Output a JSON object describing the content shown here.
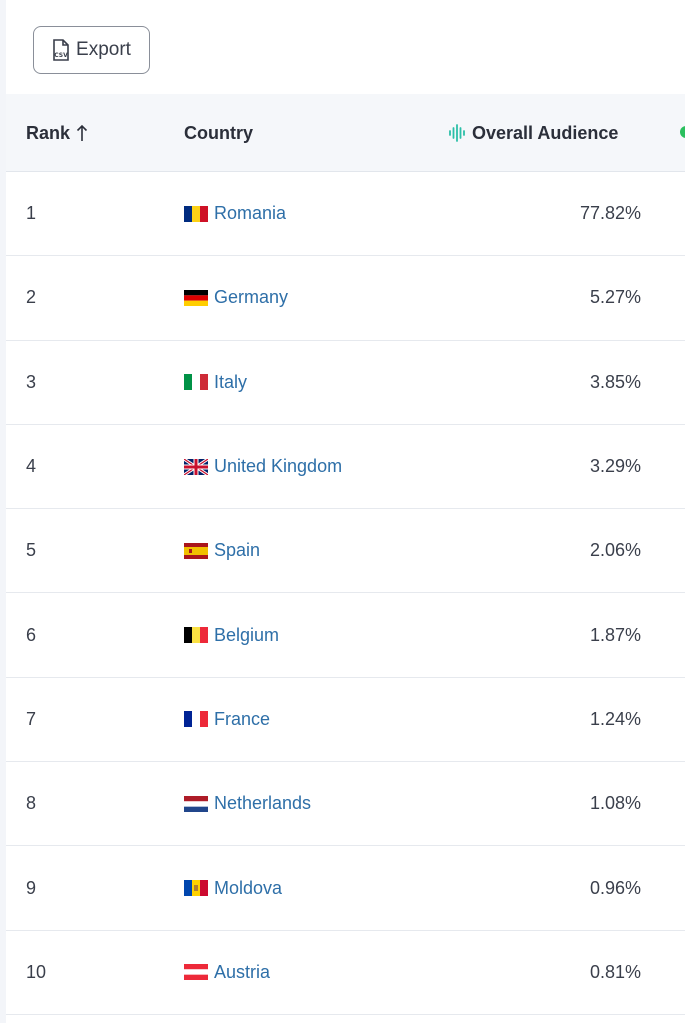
{
  "toolbar": {
    "export_label": "Export",
    "export_icon": "csv-file-icon"
  },
  "table": {
    "headers": {
      "rank": "Rank",
      "rank_sort_icon": "arrow-up-icon",
      "country": "Country",
      "audience": "Overall Audience",
      "audience_icon": "audio-wave-icon"
    },
    "rows": [
      {
        "rank": "1",
        "country": "Romania",
        "flag": "romania-flag-icon",
        "value": "77.82%"
      },
      {
        "rank": "2",
        "country": "Germany",
        "flag": "germany-flag-icon",
        "value": "5.27%"
      },
      {
        "rank": "3",
        "country": "Italy",
        "flag": "italy-flag-icon",
        "value": "3.85%"
      },
      {
        "rank": "4",
        "country": "United Kingdom",
        "flag": "uk-flag-icon",
        "value": "3.29%"
      },
      {
        "rank": "5",
        "country": "Spain",
        "flag": "spain-flag-icon",
        "value": "2.06%"
      },
      {
        "rank": "6",
        "country": "Belgium",
        "flag": "belgium-flag-icon",
        "value": "1.87%"
      },
      {
        "rank": "7",
        "country": "France",
        "flag": "france-flag-icon",
        "value": "1.24%"
      },
      {
        "rank": "8",
        "country": "Netherlands",
        "flag": "netherlands-flag-icon",
        "value": "1.08%"
      },
      {
        "rank": "9",
        "country": "Moldova",
        "flag": "moldova-flag-icon",
        "value": "0.96%"
      },
      {
        "rank": "10",
        "country": "Austria",
        "flag": "austria-flag-icon",
        "value": "0.81%"
      }
    ]
  },
  "colors": {
    "link": "#2e6fa8",
    "accent": "#2bbfa8",
    "header_bg": "#f5f7fa",
    "border": "#e6e9ee"
  }
}
